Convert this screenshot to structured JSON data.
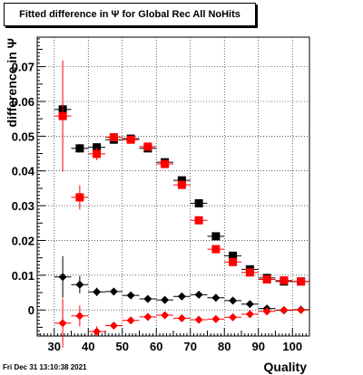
{
  "title": "Fitted difference in  Ψ  for Global Rec All NoHits",
  "timestamp": "Fri Dec 31 13:10:38 2021",
  "chart_data": {
    "type": "scatter",
    "title": "Fitted difference in  Ψ  for Global Rec All NoHits",
    "xlabel": "Quality",
    "ylabel": "difference in  Ψ",
    "xlim": [
      25,
      105
    ],
    "ylim": [
      -0.0075,
      0.0785
    ],
    "xticks": [
      30,
      40,
      50,
      60,
      70,
      80,
      90,
      100
    ],
    "yticks": [
      0,
      0.01,
      0.02,
      0.03,
      0.04,
      0.05,
      0.06,
      0.07
    ],
    "ytick_labels": [
      "0",
      "0.01",
      "0.02",
      "0.03",
      "0.04",
      "0.05",
      "0.06",
      "0.07"
    ],
    "grid": true,
    "x_half_width": 2.5,
    "x": [
      32.5,
      37.5,
      42.5,
      47.5,
      52.5,
      57.5,
      62.5,
      67.5,
      72.5,
      77.5,
      82.5,
      87.5,
      92.5,
      97.5,
      102.5
    ],
    "series": [
      {
        "marker": "square",
        "color": "#000000",
        "values": [
          0.0577,
          0.0465,
          0.0468,
          0.049,
          0.0493,
          0.0465,
          0.0425,
          0.0373,
          0.0307,
          0.0212,
          0.0156,
          0.0117,
          0.0092,
          0.0082,
          0.0082
        ],
        "errors": [
          0.0015,
          0.0012,
          0.0008,
          0.0006,
          0.0005,
          0.0005,
          0.0005,
          0.0005,
          0.0005,
          0.0005,
          0.0005,
          0.0005,
          0.0004,
          0.0004,
          0.0006
        ]
      },
      {
        "marker": "square",
        "color": "#ff0000",
        "values": [
          0.0558,
          0.0324,
          0.0449,
          0.0497,
          0.049,
          0.047,
          0.042,
          0.036,
          0.0258,
          0.0175,
          0.0138,
          0.0108,
          0.0088,
          0.0085,
          0.0082
        ],
        "errors": [
          0.016,
          0.0035,
          0.0018,
          0.001,
          0.0007,
          0.0006,
          0.0006,
          0.0006,
          0.0006,
          0.0005,
          0.0005,
          0.0005,
          0.0005,
          0.0005,
          0.0006
        ]
      },
      {
        "marker": "diamond",
        "color": "#000000",
        "values": [
          0.0095,
          0.0073,
          0.0052,
          0.0053,
          0.0042,
          0.0032,
          0.0029,
          0.0039,
          0.0044,
          0.0035,
          0.0027,
          0.0017,
          0.0004,
          -0.0001,
          0.0001
        ],
        "errors": [
          0.006,
          0.0025,
          0.0012,
          0.0007,
          0.0006,
          0.0006,
          0.0006,
          0.0006,
          0.0006,
          0.0005,
          0.0005,
          0.0005,
          0.0005,
          0.0005,
          0.0005
        ]
      },
      {
        "marker": "diamond",
        "color": "#ff0000",
        "values": [
          -0.0038,
          -0.0017,
          -0.0062,
          -0.0045,
          -0.003,
          -0.002,
          -0.0015,
          -0.0024,
          -0.0028,
          -0.0026,
          -0.0021,
          -0.0012,
          -0.0004,
          0.0,
          0.0
        ],
        "errors": [
          0.007,
          0.003,
          0.0015,
          0.0008,
          0.0007,
          0.0006,
          0.0006,
          0.0006,
          0.0006,
          0.0005,
          0.0005,
          0.0005,
          0.0005,
          0.0005,
          0.0005
        ]
      }
    ]
  }
}
